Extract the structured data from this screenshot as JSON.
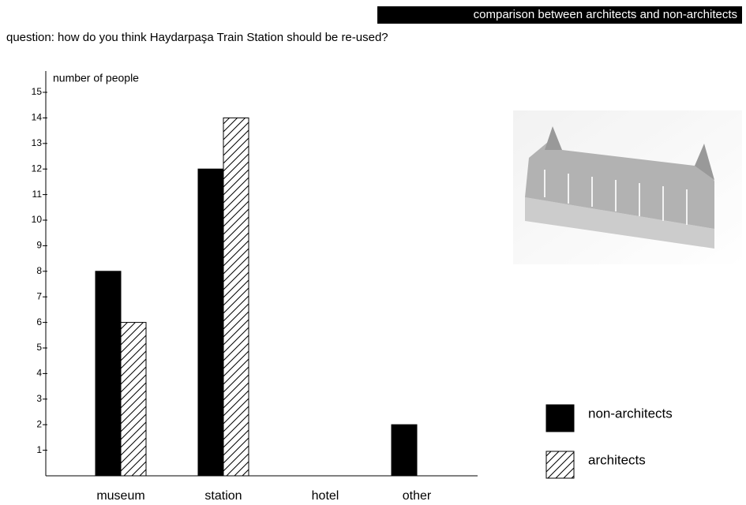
{
  "chart_data": {
    "type": "bar",
    "subtitle": "comparison between architects and non-architects",
    "title": "question: how do you think Haydarpaşa Train Station should be re-used?",
    "y_label": "number of people",
    "categories": [
      "museum",
      "station",
      "hotel",
      "other"
    ],
    "series": [
      {
        "name": "non-architects",
        "color": "#000000",
        "hatch": false,
        "values": [
          8,
          12,
          0,
          2
        ]
      },
      {
        "name": "architects",
        "color": "#000000",
        "hatch": true,
        "values": [
          6,
          14,
          0,
          0
        ]
      }
    ],
    "ylim": [
      0,
      15
    ],
    "yticks": [
      1,
      2,
      3,
      4,
      5,
      6,
      7,
      8,
      9,
      10,
      11,
      12,
      13,
      14,
      15
    ],
    "grid": false,
    "legend": "bottom-right"
  }
}
